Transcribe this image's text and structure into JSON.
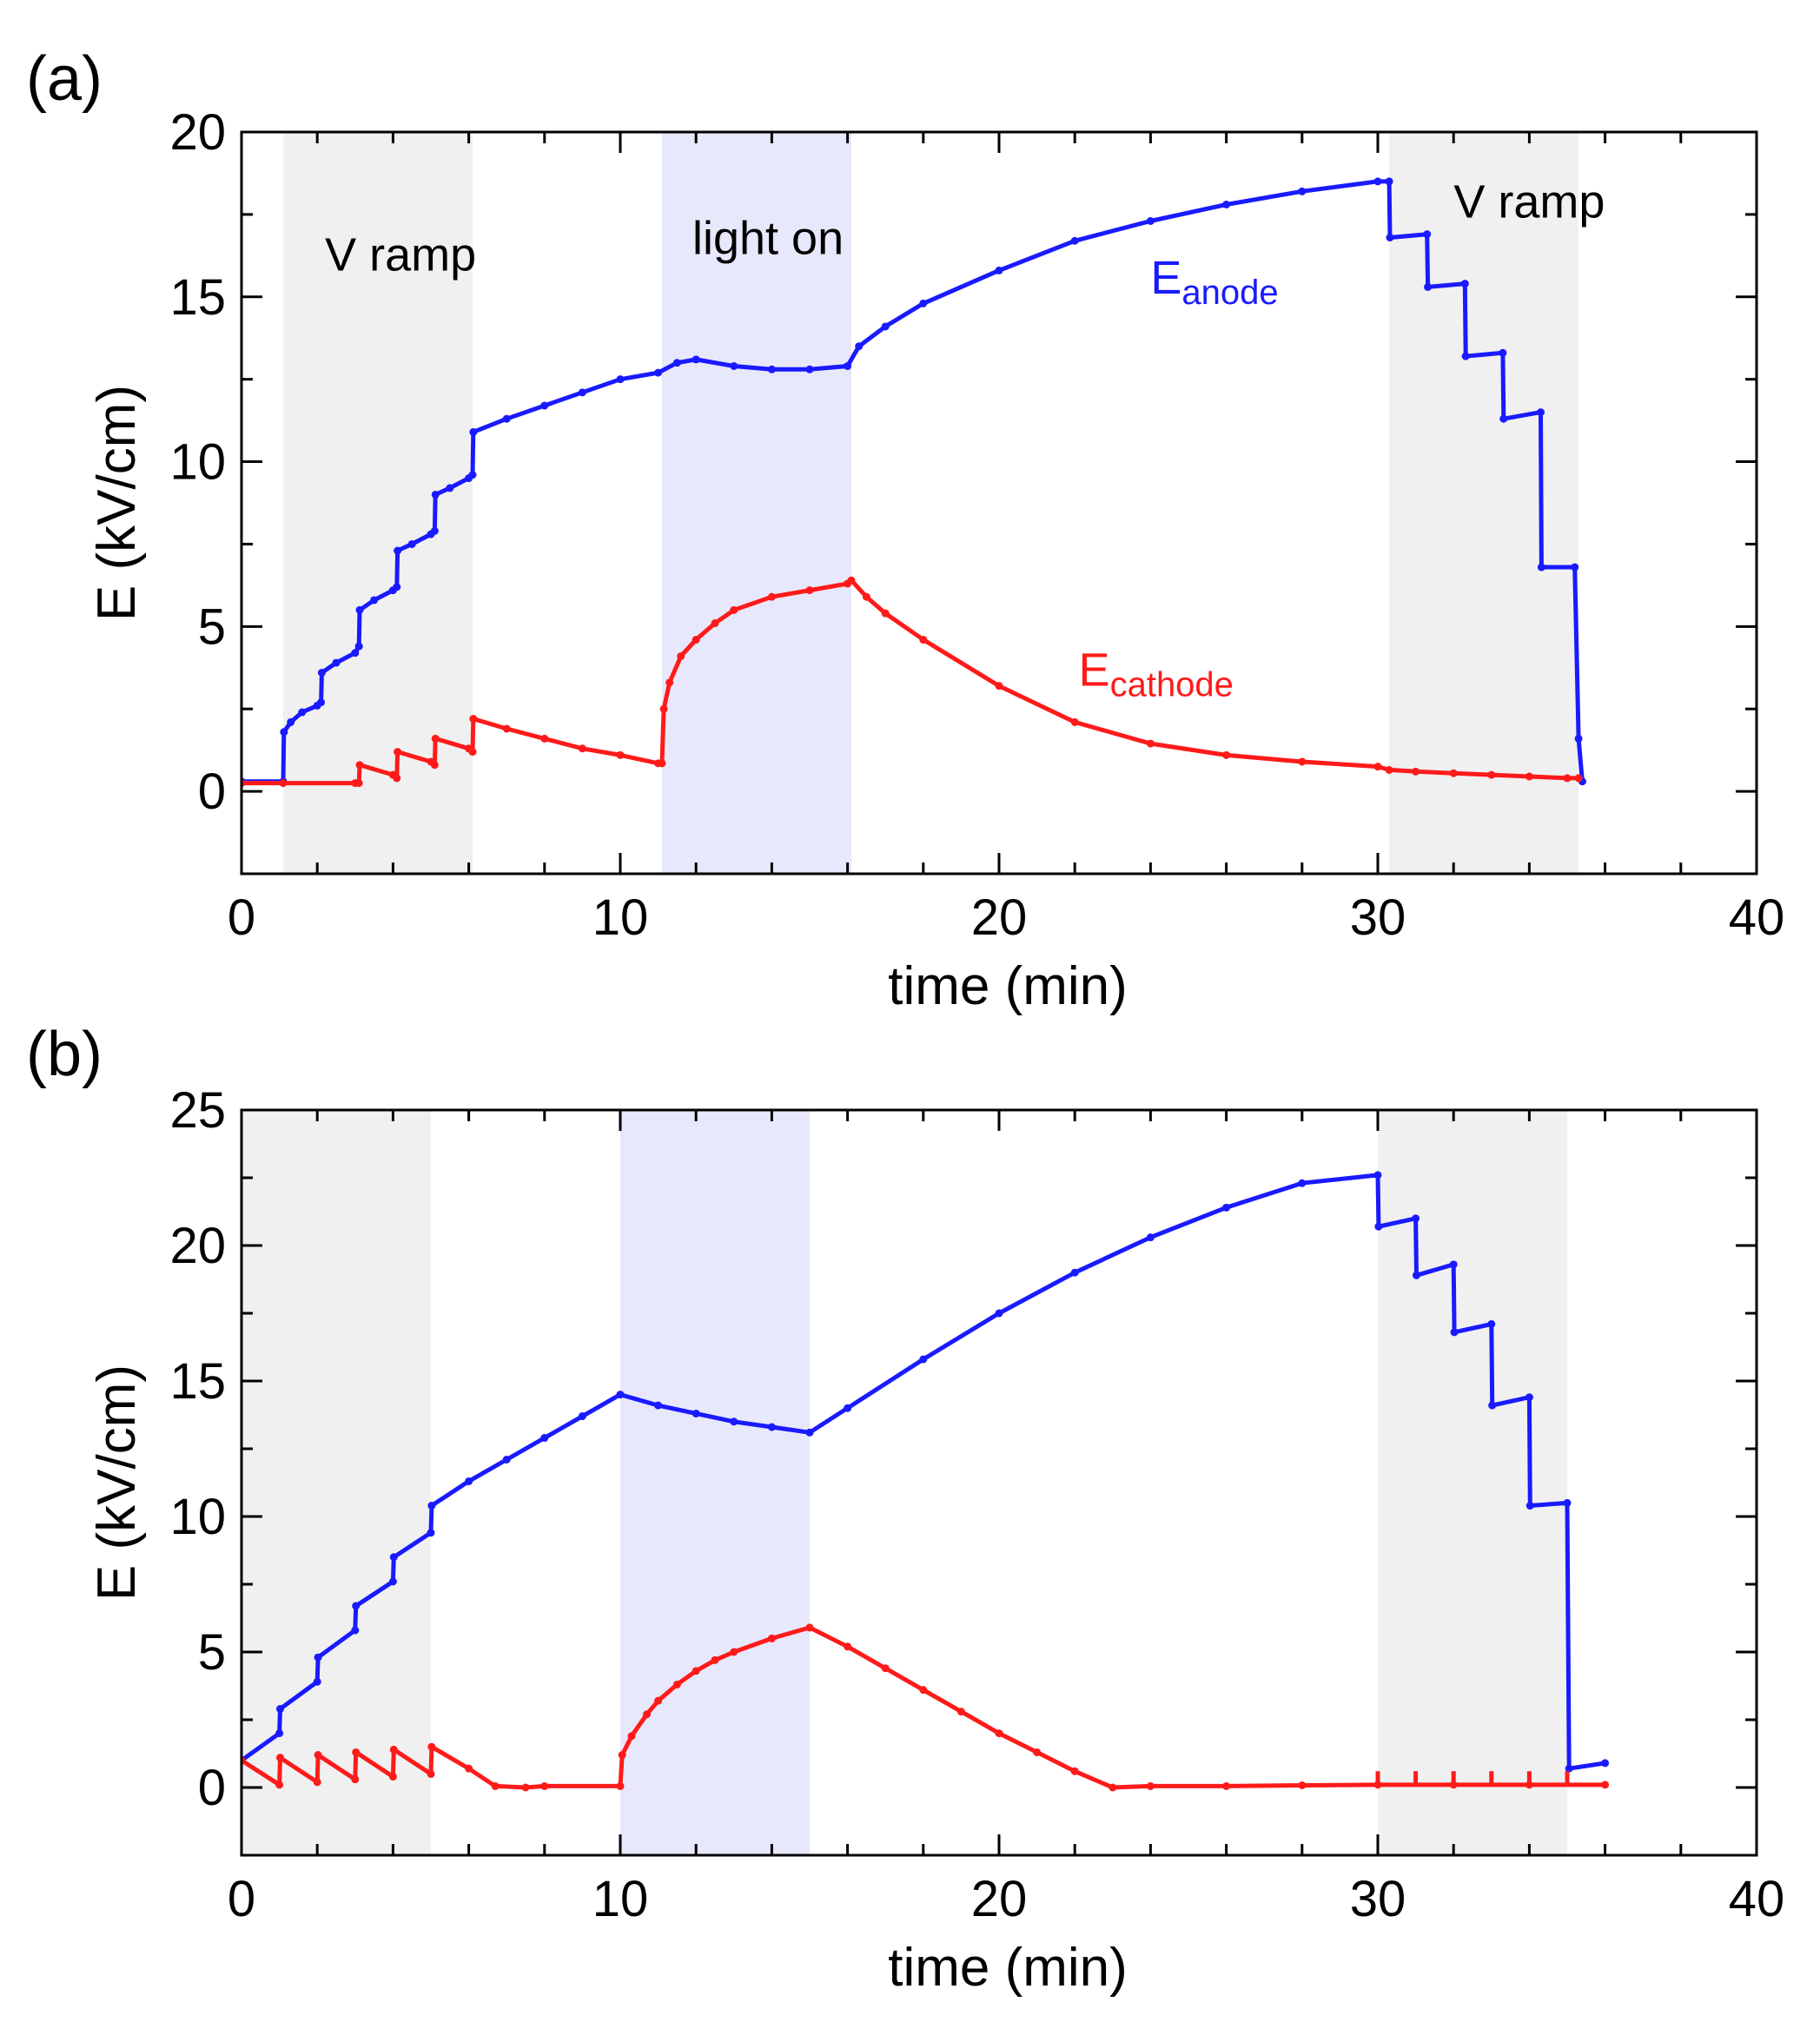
{
  "chart_data": [
    {
      "type": "line",
      "panel_label": "(a)",
      "xlabel": "time (min)",
      "ylabel": "E (kV/cm)",
      "xlim": [
        0,
        40
      ],
      "ylim": [
        -2.5,
        20
      ],
      "xticks": [
        0,
        10,
        20,
        30,
        40
      ],
      "yticks": [
        0,
        5,
        10,
        15,
        20
      ],
      "xticks_minor_step": 2,
      "yticks_minor_step": 2.5,
      "colors": {
        "anode": "#1a1aff",
        "cathode": "#ff1a1a",
        "vramp_band": "#f0f0f0",
        "light_band": "#e8e8fc"
      },
      "bands": [
        {
          "name": "V ramp",
          "x0": 1.1,
          "x1": 6.1,
          "kind": "vramp"
        },
        {
          "name": "light on",
          "x0": 11.1,
          "x1": 16.1,
          "kind": "light"
        },
        {
          "name": "V ramp",
          "x0": 30.3,
          "x1": 35.3,
          "kind": "vramp"
        }
      ],
      "annotations": [
        {
          "text": "V ramp",
          "x": 4.2,
          "y": 15.8
        },
        {
          "text": "light on",
          "x": 13.9,
          "y": 16.3
        },
        {
          "text": "V ramp",
          "x": 34.0,
          "y": 17.4
        }
      ],
      "series_labels": [
        {
          "series": "anode",
          "main": "E",
          "sub": "anode",
          "x": 24.0,
          "y": 15.1
        },
        {
          "series": "cathode",
          "main": "E",
          "sub": "cathode",
          "x": 22.1,
          "y": 3.2
        }
      ],
      "series": [
        {
          "name": "E_anode",
          "key": "anode",
          "x": [
            0,
            1.1,
            1.12,
            1.3,
            1.6,
            2.0,
            2.1,
            2.12,
            2.5,
            3.0,
            3.1,
            3.12,
            3.5,
            4.0,
            4.1,
            4.12,
            4.5,
            5.0,
            5.1,
            5.12,
            5.5,
            6.0,
            6.1,
            6.12,
            7.0,
            8.0,
            9.0,
            10.0,
            11.0,
            11.5,
            12.0,
            13.0,
            14.0,
            15.0,
            16.0,
            16.3,
            17.0,
            18.0,
            20.0,
            22.0,
            24.0,
            26.0,
            28.0,
            30.0,
            30.3,
            30.32,
            31.3,
            31.32,
            32.3,
            32.32,
            33.3,
            33.32,
            34.3,
            34.32,
            35.2,
            35.3,
            35.4
          ],
          "y": [
            0.3,
            0.3,
            1.8,
            2.1,
            2.4,
            2.6,
            2.7,
            3.6,
            3.9,
            4.2,
            4.4,
            5.5,
            5.8,
            6.1,
            6.2,
            7.3,
            7.5,
            7.8,
            7.9,
            9.0,
            9.2,
            9.5,
            9.6,
            10.9,
            11.3,
            11.7,
            12.1,
            12.5,
            12.7,
            13.0,
            13.1,
            12.9,
            12.8,
            12.8,
            12.9,
            13.5,
            14.1,
            14.8,
            15.8,
            16.7,
            17.3,
            17.8,
            18.2,
            18.5,
            18.5,
            16.8,
            16.9,
            15.3,
            15.4,
            13.2,
            13.3,
            11.3,
            11.5,
            6.8,
            6.8,
            1.6,
            0.3
          ]
        },
        {
          "name": "E_cathode",
          "key": "cathode",
          "x": [
            0,
            1.1,
            3.0,
            3.1,
            3.12,
            4.0,
            4.1,
            4.12,
            5.0,
            5.1,
            5.12,
            6.0,
            6.1,
            6.12,
            7.0,
            8.0,
            9.0,
            10.0,
            11.0,
            11.1,
            11.15,
            11.3,
            11.6,
            12.0,
            12.5,
            13.0,
            14.0,
            15.0,
            16.0,
            16.1,
            16.5,
            17.0,
            18.0,
            20.0,
            22.0,
            24.0,
            26.0,
            28.0,
            30.0,
            30.3,
            31.0,
            32.0,
            33.0,
            34.0,
            35.0,
            35.3
          ],
          "y": [
            0.25,
            0.25,
            0.25,
            0.25,
            0.8,
            0.5,
            0.4,
            1.2,
            0.9,
            0.8,
            1.6,
            1.3,
            1.2,
            2.2,
            1.9,
            1.6,
            1.3,
            1.1,
            0.85,
            0.85,
            2.5,
            3.3,
            4.1,
            4.6,
            5.1,
            5.5,
            5.9,
            6.1,
            6.3,
            6.4,
            5.9,
            5.4,
            4.6,
            3.2,
            2.1,
            1.45,
            1.1,
            0.9,
            0.75,
            0.65,
            0.6,
            0.55,
            0.5,
            0.45,
            0.4,
            0.4
          ]
        }
      ]
    },
    {
      "type": "line",
      "panel_label": "(b)",
      "xlabel": "time (min)",
      "ylabel": "E (kV/cm)",
      "xlim": [
        0,
        40
      ],
      "ylim": [
        -2.5,
        25
      ],
      "xticks": [
        0,
        10,
        20,
        30,
        40
      ],
      "yticks": [
        0,
        5,
        10,
        15,
        20,
        25
      ],
      "xticks_minor_step": 2,
      "yticks_minor_step": 2.5,
      "colors": {
        "anode": "#1a1aff",
        "cathode": "#ff1a1a",
        "vramp_band": "#f0f0f0",
        "light_band": "#e8e8fc"
      },
      "bands": [
        {
          "name": "V ramp",
          "x0": 0,
          "x1": 5,
          "kind": "vramp"
        },
        {
          "name": "light on",
          "x0": 10,
          "x1": 15,
          "kind": "light"
        },
        {
          "name": "V ramp",
          "x0": 30,
          "x1": 35,
          "kind": "vramp"
        }
      ],
      "annotations": [],
      "series_labels": [],
      "series": [
        {
          "name": "E_anode",
          "key": "anode",
          "x": [
            0,
            1.0,
            1.02,
            2.0,
            2.02,
            3.0,
            3.02,
            4.0,
            4.02,
            5.0,
            5.02,
            6.0,
            7.0,
            8.0,
            9.0,
            10.0,
            11.0,
            12.0,
            13.0,
            14.0,
            15.0,
            16.0,
            18.0,
            20.0,
            22.0,
            24.0,
            26.0,
            28.0,
            30.0,
            30.02,
            31.0,
            31.02,
            32.0,
            32.02,
            33.0,
            33.02,
            34.0,
            34.02,
            35.0,
            35.05,
            36.0
          ],
          "y": [
            1.0,
            2.0,
            2.9,
            3.9,
            4.8,
            5.8,
            6.7,
            7.6,
            8.5,
            9.4,
            10.4,
            11.3,
            12.1,
            12.9,
            13.7,
            14.5,
            14.1,
            13.8,
            13.5,
            13.3,
            13.1,
            14.0,
            15.8,
            17.5,
            19.0,
            20.3,
            21.4,
            22.3,
            22.6,
            20.7,
            21.0,
            18.9,
            19.3,
            16.8,
            17.1,
            14.1,
            14.4,
            10.4,
            10.5,
            0.7,
            0.9
          ]
        },
        {
          "name": "E_cathode",
          "key": "cathode",
          "x": [
            0,
            1.0,
            1.02,
            2.0,
            2.02,
            3.0,
            3.02,
            4.0,
            4.02,
            5.0,
            5.02,
            6.0,
            6.7,
            7.5,
            8.0,
            10.0,
            10.05,
            10.3,
            10.7,
            11.0,
            11.5,
            12.0,
            12.5,
            13.0,
            14.0,
            15.0,
            16.0,
            17.0,
            18.0,
            19.0,
            20.0,
            21.0,
            22.0,
            23.0,
            24.0,
            26.0,
            28.0,
            30.0,
            32.0,
            34.0,
            36.0
          ],
          "y": [
            1.0,
            0.1,
            1.1,
            0.2,
            1.2,
            0.3,
            1.3,
            0.4,
            1.4,
            0.5,
            1.5,
            0.7,
            0.05,
            0.0,
            0.05,
            0.05,
            1.2,
            1.9,
            2.7,
            3.2,
            3.8,
            4.3,
            4.7,
            5.0,
            5.5,
            5.9,
            5.2,
            4.4,
            3.6,
            2.8,
            2.0,
            1.3,
            0.6,
            0.0,
            0.05,
            0.05,
            0.08,
            0.1,
            0.1,
            0.1,
            0.1
          ]
        }
      ],
      "spikes": {
        "key": "cathode",
        "x": [
          30,
          31,
          32,
          33,
          34,
          35
        ],
        "y0": 0.1,
        "y1": 0.6
      }
    }
  ]
}
